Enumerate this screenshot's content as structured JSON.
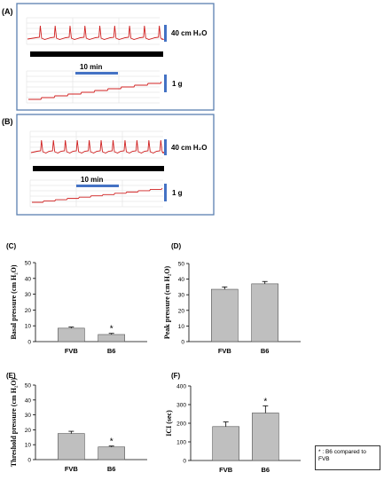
{
  "trace_panels": [
    {
      "label": "(A)",
      "pressure_scale": "40 cm H₂O",
      "time_scale": "10 min",
      "weight_scale": "1 g"
    },
    {
      "label": "(B)",
      "pressure_scale": "40 cm H₂O",
      "time_scale": "10 min",
      "weight_scale": "1 g"
    }
  ],
  "colors": {
    "frame": "#5b7fb1",
    "trace": "#d02020",
    "scale_bar": "#4472c4",
    "bar_fill": "#bfbfbf",
    "grid": "#dddddd"
  },
  "footnote": "* : B6 compared to FVB",
  "chart_data": [
    {
      "panel": "(C)",
      "type": "bar",
      "categories": [
        "FVB",
        "B6"
      ],
      "values": [
        8.5,
        4.5
      ],
      "errors": [
        0.7,
        0.7
      ],
      "significance": [
        "",
        "*"
      ],
      "ylabel": "Basal pressure (cm H₂O)",
      "ylim": [
        0,
        50
      ],
      "yticks": [
        0,
        10,
        20,
        30,
        40,
        50
      ]
    },
    {
      "panel": "(D)",
      "type": "bar",
      "categories": [
        "FVB",
        "B6"
      ],
      "values": [
        33.5,
        37
      ],
      "errors": [
        1.5,
        1.5
      ],
      "significance": [
        "",
        ""
      ],
      "ylabel": "Peak pressure (cm H₂O)",
      "ylim": [
        0,
        50
      ],
      "yticks": [
        0,
        10,
        20,
        30,
        40,
        50
      ]
    },
    {
      "panel": "(E)",
      "type": "bar",
      "categories": [
        "FVB",
        "B6"
      ],
      "values": [
        17.5,
        8.5
      ],
      "errors": [
        1.5,
        0.6
      ],
      "significance": [
        "",
        "*"
      ],
      "ylabel": "Threshold pressure (cm H₂O)",
      "ylim": [
        0,
        50
      ],
      "yticks": [
        0,
        10,
        20,
        30,
        40,
        50
      ]
    },
    {
      "panel": "(F)",
      "type": "bar",
      "categories": [
        "FVB",
        "B6"
      ],
      "values": [
        182,
        255
      ],
      "errors": [
        25,
        38
      ],
      "significance": [
        "",
        "*"
      ],
      "ylabel": "ICI (sec)",
      "ylim": [
        0,
        400
      ],
      "yticks": [
        0,
        100,
        200,
        300,
        400
      ]
    }
  ]
}
